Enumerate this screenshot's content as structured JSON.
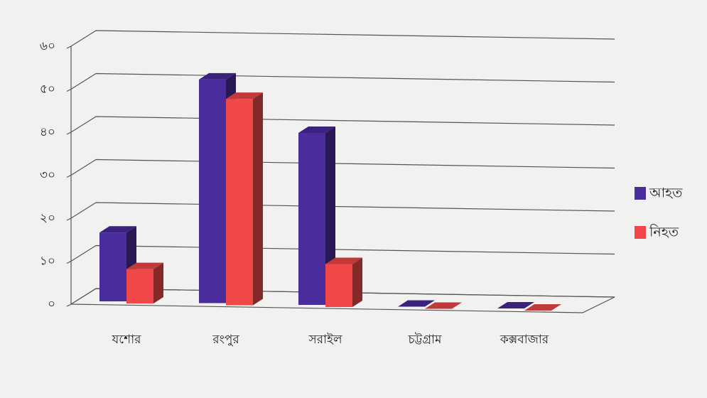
{
  "chart_data": {
    "type": "bar3d",
    "categories": [
      "যশোর",
      "রংপুর",
      "সরাইল",
      "চট্টগ্রাম",
      "কক্সবাজার"
    ],
    "series": [
      {
        "name": "আহত",
        "color": "#4a2c9c",
        "values": [
          16,
          52,
          40,
          0,
          0
        ]
      },
      {
        "name": "নিহত",
        "color": "#f04848",
        "values": [
          8,
          48,
          10,
          0,
          0
        ]
      }
    ],
    "ylim": [
      0,
      60
    ],
    "yticks": [
      {
        "value": 0,
        "label": "০"
      },
      {
        "value": 10,
        "label": "১০"
      },
      {
        "value": 20,
        "label": "২০"
      },
      {
        "value": 30,
        "label": "৩০"
      },
      {
        "value": 40,
        "label": "৪০"
      },
      {
        "value": 50,
        "label": "৫০"
      },
      {
        "value": 60,
        "label": "৬০"
      }
    ],
    "grid": true,
    "legend": "right"
  }
}
